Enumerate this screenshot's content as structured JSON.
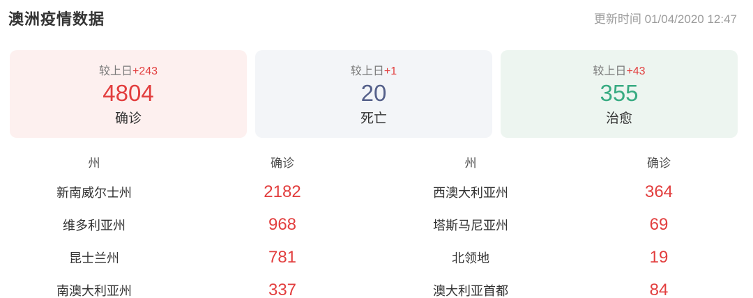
{
  "header": {
    "title": "澳洲疫情数据",
    "updated_label": "更新时间",
    "updated_time": "01/04/2020 12:47"
  },
  "colors": {
    "accent_red": "#e23e3e",
    "accent_blue": "#55608a",
    "accent_green": "#38ab82",
    "confirmed_card_bg": "#fdf0ef",
    "deaths_card_bg": "#f3f5f8",
    "cured_card_bg": "#edf5f0"
  },
  "cards": [
    {
      "delta_label": "较上日",
      "delta": "+243",
      "value": "4804",
      "label": "确诊",
      "bg": "#fdf0ef",
      "value_color": "#e23e3e"
    },
    {
      "delta_label": "较上日",
      "delta": "+1",
      "value": "20",
      "label": "死亡",
      "bg": "#f3f5f8",
      "value_color": "#55608a"
    },
    {
      "delta_label": "较上日",
      "delta": "+43",
      "value": "355",
      "label": "治愈",
      "bg": "#edf5f0",
      "value_color": "#38ab82"
    }
  ],
  "table": {
    "header": {
      "state": "州",
      "confirmed": "确诊"
    },
    "rows": [
      {
        "state_l": "新南威尔士州",
        "confirmed_l": "2182",
        "state_r": "西澳大利亚州",
        "confirmed_r": "364"
      },
      {
        "state_l": "维多利亚州",
        "confirmed_l": "968",
        "state_r": "塔斯马尼亚州",
        "confirmed_r": "69"
      },
      {
        "state_l": "昆士兰州",
        "confirmed_l": "781",
        "state_r": "北领地",
        "confirmed_r": "19"
      },
      {
        "state_l": "南澳大利亚州",
        "confirmed_l": "337",
        "state_r": "澳大利亚首都",
        "confirmed_r": "84"
      }
    ]
  }
}
